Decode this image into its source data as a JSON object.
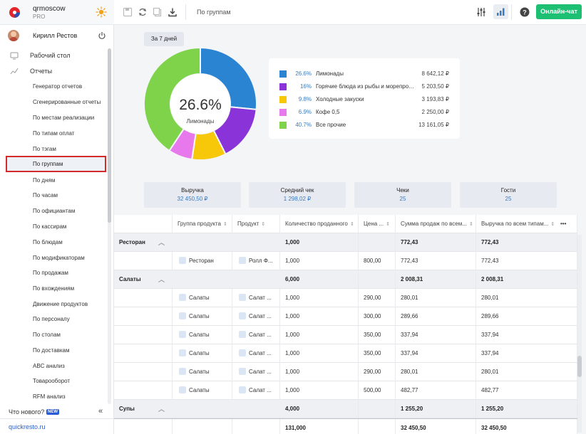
{
  "brand": {
    "name": "qrmoscow",
    "plan": "PRO",
    "logo_icon": "quickresto-logo-icon",
    "theme_icon": "sun-icon"
  },
  "user": {
    "name": "Кирилл Рестов"
  },
  "nav": {
    "desktop": "Рабочий стол",
    "reports": "Отчеты",
    "items": [
      "Генератор отчетов",
      "Сгенерированные отчеты",
      "По местам реализации",
      "По типам оплат",
      "По тэгам",
      "По группам",
      "По дням",
      "По часам",
      "По официантам",
      "По кассирам",
      "По блюдам",
      "По модификаторам",
      "По продажам",
      "По вхождениям",
      "Движение продуктов",
      "По персоналу",
      "По столам",
      "По доставкам",
      "ABC анализ",
      "Товарооборот",
      "RFM анализ"
    ],
    "active": "По группам"
  },
  "whats_new": {
    "label": "Что нового?",
    "badge": "NEW"
  },
  "footer_link": "quickresto.ru",
  "topbar": {
    "title": "По группам",
    "online_chat": "Онлайн-чат"
  },
  "period": "За 7 дней",
  "donut": {
    "center_pct": "26.6%",
    "center_label": "Лимонады"
  },
  "legend": [
    {
      "pct": "26.6%",
      "name": "Лимонады",
      "value": "8 642,12 ₽",
      "color": "#2b84d2"
    },
    {
      "pct": "16%",
      "name": "Горячие блюда из рыбы и морепродуктов",
      "value": "5 203,50 ₽",
      "color": "#8a33d8"
    },
    {
      "pct": "9.8%",
      "name": "Холодные закуски",
      "value": "3 193,83 ₽",
      "color": "#f7c70a"
    },
    {
      "pct": "6.9%",
      "name": "Кофе 0,5",
      "value": "2 250,00 ₽",
      "color": "#e879ec"
    },
    {
      "pct": "40.7%",
      "name": "Все прочие",
      "value": "13 161,05 ₽",
      "color": "#7fd34a"
    }
  ],
  "chart_data": {
    "type": "pie",
    "categories": [
      "Лимонады",
      "Горячие блюда из рыбы и морепродуктов",
      "Холодные закуски",
      "Кофе 0,5",
      "Все прочие"
    ],
    "values": [
      26.6,
      16,
      9.8,
      6.9,
      40.7
    ],
    "amounts": [
      "8 642,12 ₽",
      "5 203,50 ₽",
      "3 193,83 ₽",
      "2 250,00 ₽",
      "13 161,05 ₽"
    ]
  },
  "kpis": [
    {
      "title": "Выручка",
      "value": "32 450,50 ₽"
    },
    {
      "title": "Средний чек",
      "value": "1 298,02 ₽"
    },
    {
      "title": "Чеки",
      "value": "25"
    },
    {
      "title": "Гости",
      "value": "25"
    }
  ],
  "table": {
    "headers": [
      "Группа продукта",
      "Продукт",
      "Количество проданного",
      "Цена ...",
      "Сумма продаж по всем...",
      "Выручка по всем типам..."
    ],
    "rows": [
      {
        "kind": "group",
        "name": "Ресторан",
        "qty": "1,000",
        "sum": "772,43",
        "rev": "772,43"
      },
      {
        "kind": "item",
        "group": "Ресторан",
        "product": "Ролл Ф...",
        "qty": "1,000",
        "price": "800,00",
        "sum": "772,43",
        "rev": "772,43"
      },
      {
        "kind": "group",
        "name": "Салаты",
        "qty": "6,000",
        "sum": "2 008,31",
        "rev": "2 008,31"
      },
      {
        "kind": "item",
        "group": "Салаты",
        "product": "Салат ...",
        "qty": "1,000",
        "price": "290,00",
        "sum": "280,01",
        "rev": "280,01"
      },
      {
        "kind": "item",
        "group": "Салаты",
        "product": "Салат ...",
        "qty": "1,000",
        "price": "300,00",
        "sum": "289,66",
        "rev": "289,66"
      },
      {
        "kind": "item",
        "group": "Салаты",
        "product": "Салат ...",
        "qty": "1,000",
        "price": "350,00",
        "sum": "337,94",
        "rev": "337,94"
      },
      {
        "kind": "item",
        "group": "Салаты",
        "product": "Салат ...",
        "qty": "1,000",
        "price": "350,00",
        "sum": "337,94",
        "rev": "337,94"
      },
      {
        "kind": "item",
        "group": "Салаты",
        "product": "Салат ...",
        "qty": "1,000",
        "price": "290,00",
        "sum": "280,01",
        "rev": "280,01"
      },
      {
        "kind": "item",
        "group": "Салаты",
        "product": "Салат ...",
        "qty": "1,000",
        "price": "500,00",
        "sum": "482,77",
        "rev": "482,77"
      },
      {
        "kind": "group",
        "name": "Супы",
        "qty": "4,000",
        "sum": "1 255,20",
        "rev": "1 255,20"
      }
    ],
    "total": {
      "qty": "131,000",
      "sum": "32 450,50",
      "rev": "32 450,50"
    }
  }
}
